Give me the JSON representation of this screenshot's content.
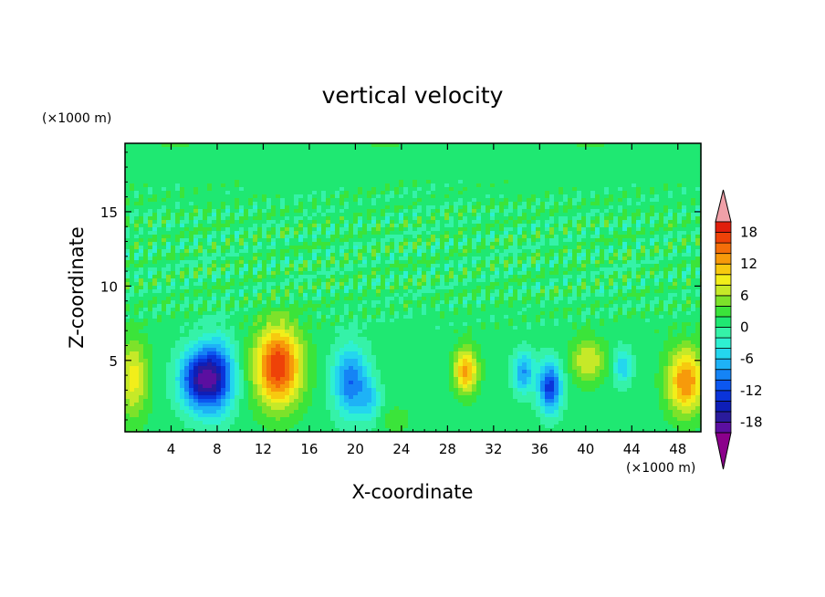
{
  "chart_data": {
    "type": "heatmap",
    "title": "vertical velocity",
    "xlabel": "X-coordinate",
    "ylabel": "Z-coordinate",
    "x_unit_note": "(×1000 m)",
    "y_unit_note": "(×1000 m)",
    "xlim": [
      0,
      50
    ],
    "ylim": [
      0.2,
      19.6
    ],
    "x_ticks": [
      4,
      8,
      12,
      16,
      20,
      24,
      28,
      32,
      36,
      40,
      44,
      48
    ],
    "y_ticks": [
      5,
      10,
      15
    ],
    "colorbar": {
      "min": -20,
      "max": 20,
      "step": 2,
      "tick_labels": [
        18,
        12,
        6,
        0,
        -6,
        -12,
        -18
      ],
      "extend": "both",
      "colors": [
        "#8b008b",
        "#5b0fa0",
        "#2a1b9c",
        "#0e1eb7",
        "#0a34da",
        "#0c57f0",
        "#1584f5",
        "#1eb2f6",
        "#24d6ee",
        "#2ef0d2",
        "#35f2a8",
        "#1fe872",
        "#3be43a",
        "#7de22a",
        "#c6e928",
        "#f2ee1a",
        "#f7c90f",
        "#f79a0a",
        "#f46e09",
        "#ee4208",
        "#e01e0c",
        "#f0a0a8"
      ]
    },
    "background_level": 1,
    "upper_noise_level": 3,
    "features": [
      {
        "x": 6.3,
        "z": 3.7,
        "wx": 1.7,
        "wz": 2.0,
        "w": -14
      },
      {
        "x": 8.0,
        "z": 3.9,
        "wx": 1.6,
        "wz": 2.4,
        "w": -13
      },
      {
        "x": 13.3,
        "z": 4.6,
        "wx": 2.0,
        "wz": 2.7,
        "w": 17
      },
      {
        "x": 19.6,
        "z": 3.6,
        "wx": 1.5,
        "wz": 2.3,
        "w": -11
      },
      {
        "x": 21.3,
        "z": 2.3,
        "wx": 0.9,
        "wz": 1.4,
        "w": -5
      },
      {
        "x": 29.6,
        "z": 4.3,
        "wx": 1.0,
        "wz": 1.5,
        "w": 12
      },
      {
        "x": 34.6,
        "z": 4.2,
        "wx": 0.9,
        "wz": 1.4,
        "w": -9
      },
      {
        "x": 36.9,
        "z": 3.2,
        "wx": 1.0,
        "wz": 1.7,
        "w": -14
      },
      {
        "x": 40.2,
        "z": 5.0,
        "wx": 1.5,
        "wz": 1.5,
        "w": 7
      },
      {
        "x": 43.2,
        "z": 4.6,
        "wx": 0.8,
        "wz": 1.2,
        "w": -7
      },
      {
        "x": 48.7,
        "z": 3.6,
        "wx": 1.6,
        "wz": 2.2,
        "w": 13
      },
      {
        "x": 0.7,
        "z": 3.8,
        "wx": 1.3,
        "wz": 2.6,
        "w": 8
      },
      {
        "x": 23.5,
        "z": 1.0,
        "wx": 1.2,
        "wz": 0.8,
        "w": 3
      }
    ]
  }
}
